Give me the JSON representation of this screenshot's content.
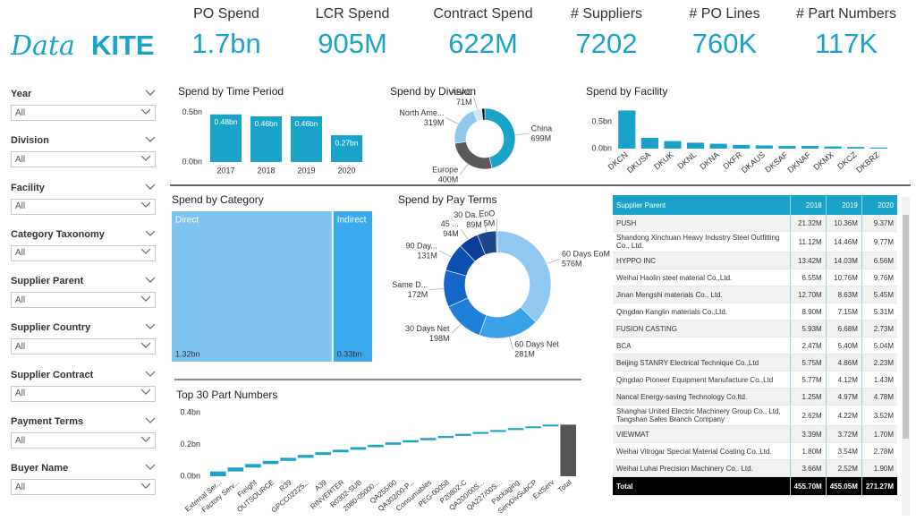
{
  "logo": {
    "script": "Data",
    "bold": "KITE"
  },
  "kpis": [
    {
      "label": "PO Spend",
      "value": "1.7bn"
    },
    {
      "label": "LCR Spend",
      "value": "905M"
    },
    {
      "label": "Contract Spend",
      "value": "622M"
    },
    {
      "label": "# Suppliers",
      "value": "7202"
    },
    {
      "label": "# PO Lines",
      "value": "760K"
    },
    {
      "label": "# Part Numbers",
      "value": "117K"
    }
  ],
  "filters": [
    {
      "label": "Year",
      "value": "All"
    },
    {
      "label": "Division",
      "value": "All"
    },
    {
      "label": "Facility",
      "value": "All"
    },
    {
      "label": "Category Taxonomy",
      "value": "All"
    },
    {
      "label": "Supplier Parent",
      "value": "All"
    },
    {
      "label": "Supplier Country",
      "value": "All"
    },
    {
      "label": "Supplier Contract",
      "value": "All"
    },
    {
      "label": "Payment Terms",
      "value": "All"
    },
    {
      "label": "Buyer Name",
      "value": "All"
    }
  ],
  "chart_data": [
    {
      "type": "bar",
      "title": "Spend by Time Period",
      "categories": [
        "2017",
        "2018",
        "2019",
        "2020"
      ],
      "values": [
        0.48,
        0.46,
        0.46,
        0.27
      ],
      "value_labels": [
        "0.48bn",
        "0.46bn",
        "0.46bn",
        "0.27bn"
      ],
      "color": "#1aa3c8",
      "ylim": [
        0,
        0.55
      ],
      "yticks": [
        {
          "value": 0,
          "label": "0.0bn"
        },
        {
          "value": 0.5,
          "label": "0.5bn"
        }
      ]
    },
    {
      "type": "pie",
      "title": "Spend by Division",
      "categories": [
        "China",
        "Europe",
        "North Ame...",
        "APAC",
        null
      ],
      "values": [
        699,
        400,
        319,
        71,
        25
      ],
      "value_labels": [
        "699M",
        "400M",
        "319M",
        "71M",
        null
      ],
      "colors": [
        "#1aa3c8",
        "#5a5a5a",
        "#8fc8ea",
        "#cfe6f4",
        "#111111"
      ]
    },
    {
      "type": "bar",
      "title": "Spend by Facility",
      "categories": [
        "DKCN",
        "DKUSA",
        "DKUK",
        "DKNL",
        "DKNA",
        "DKFR",
        "DKAUS",
        "DKSAF",
        "DKNAF",
        "DKMX",
        "DKCZ",
        "DKBRZ"
      ],
      "values": [
        0.71,
        0.2,
        0.14,
        0.11,
        0.09,
        0.07,
        0.06,
        0.05,
        0.05,
        0.04,
        0.03,
        0.02
      ],
      "color": "#1aa3c8",
      "ylim": [
        0,
        0.8
      ],
      "yticks": [
        {
          "value": 0,
          "label": "0.0bn"
        },
        {
          "value": 0.5,
          "label": "0.5bn"
        }
      ]
    },
    {
      "type": "treemap",
      "title": "Spend by Category",
      "categories": [
        "Direct",
        "Indirect"
      ],
      "values": [
        1.32,
        0.33
      ],
      "value_labels": [
        "1.32bn",
        "0.33bn"
      ],
      "colors": [
        "#7ec3f0",
        "#3aa8ea"
      ]
    },
    {
      "type": "pie",
      "title": "Spend by Pay Terms",
      "categories": [
        "60 Days EoM",
        "60 Days Net",
        "30 Days Net",
        "Same D...",
        "90 Day...",
        "45 ...",
        "30 Da...",
        "EoO"
      ],
      "values": [
        576,
        281,
        198,
        172,
        131,
        94,
        89,
        5
      ],
      "value_labels": [
        "576M",
        "281M",
        "198M",
        "172M",
        "131M",
        "94M",
        "89M",
        "5M"
      ],
      "colors": [
        "#8fc8f0",
        "#3aa0e8",
        "#1f80d8",
        "#1466c8",
        "#0d50b0",
        "#0a3c98",
        "#1c4788",
        "#6a8aa0"
      ]
    },
    {
      "type": "waterfall",
      "title": "Top 30 Part Numbers",
      "categories": [
        "External Ser...",
        "Factory Serv...",
        "Freight",
        "OUTSOURCE",
        "R39",
        "GPCC02225...",
        "A39",
        "RINVERTER",
        "R0302-SUB",
        "2080-05000...",
        "QA255/00",
        "QA302/00-P...",
        "Consumables",
        "PEG-00058",
        "P20802-C",
        "QA200/00S...",
        "QA227/00S...",
        "Packaging",
        "ServDivSubCP",
        "ExtServ",
        "Total"
      ],
      "values": [
        0.03,
        0.025,
        0.022,
        0.02,
        0.019,
        0.018,
        0.017,
        0.016,
        0.016,
        0.015,
        0.015,
        0.014,
        0.014,
        0.013,
        0.013,
        0.012,
        0.012,
        0.012,
        0.011,
        0.011,
        0.325
      ],
      "color": "#1aa3c8",
      "total_color": "#555555",
      "ylim": [
        0,
        0.42
      ],
      "yticks": [
        {
          "value": 0,
          "label": "0.0bn"
        },
        {
          "value": 0.2,
          "label": "0.2bn"
        },
        {
          "value": 0.4,
          "label": "0.4bn"
        }
      ]
    }
  ],
  "table": {
    "columns": [
      "Supplier Parent",
      "2018",
      "2019",
      "2020"
    ],
    "rows": [
      [
        "PUSH",
        "21.32M",
        "10.36M",
        "9.37M"
      ],
      [
        "Shandong Xinchuan Heavy Industry Steel Outfitting Co., Ltd.",
        "11.12M",
        "14.46M",
        "9.77M"
      ],
      [
        "HYPPO INC",
        "13.42M",
        "14.03M",
        "6.56M"
      ],
      [
        "Weihai Haolin steel material Co.,Ltd.",
        "6.55M",
        "10.76M",
        "9.76M"
      ],
      [
        "Jinan Mengshi materials Co., Ltd.",
        "12.70M",
        "8.63M",
        "5.45M"
      ],
      [
        "Qingdan Kanglin materials Co.,Ltd.",
        "8.90M",
        "7.15M",
        "5.31M"
      ],
      [
        "FUSION CASTING",
        "5.93M",
        "6.68M",
        "2.73M"
      ],
      [
        "BCA",
        "2.47M",
        "5.40M",
        "5.04M"
      ],
      [
        "Beijing STANRY Electrical Technique Co.,Ltd",
        "5.75M",
        "4.86M",
        "2.23M"
      ],
      [
        "Qingdao Pioneer Equipment Manufacture Co.,Ltd",
        "5.77M",
        "4.12M",
        "1.43M"
      ],
      [
        "Nancal Energy-saving Technology Co.ltd.",
        "1.25M",
        "4.97M",
        "4.78M"
      ],
      [
        "Shanghai United Electric Machinery Group Co., Ltd, Tangshan Sales Branch Company",
        "2.62M",
        "4.22M",
        "3.52M"
      ],
      [
        "VIEWMAT",
        "3.39M",
        "3.72M",
        "1.70M"
      ],
      [
        "Weihai Vitrogar Special Material Coating Co.,Ltd.",
        "1.80M",
        "3.54M",
        "2.78M"
      ],
      [
        "Weihai Luhai Precision Machinery Co,. Ltd.",
        "3.66M",
        "2.52M",
        "1.90M"
      ]
    ],
    "total": [
      "Total",
      "455.70M",
      "455.05M",
      "271.27M"
    ]
  }
}
